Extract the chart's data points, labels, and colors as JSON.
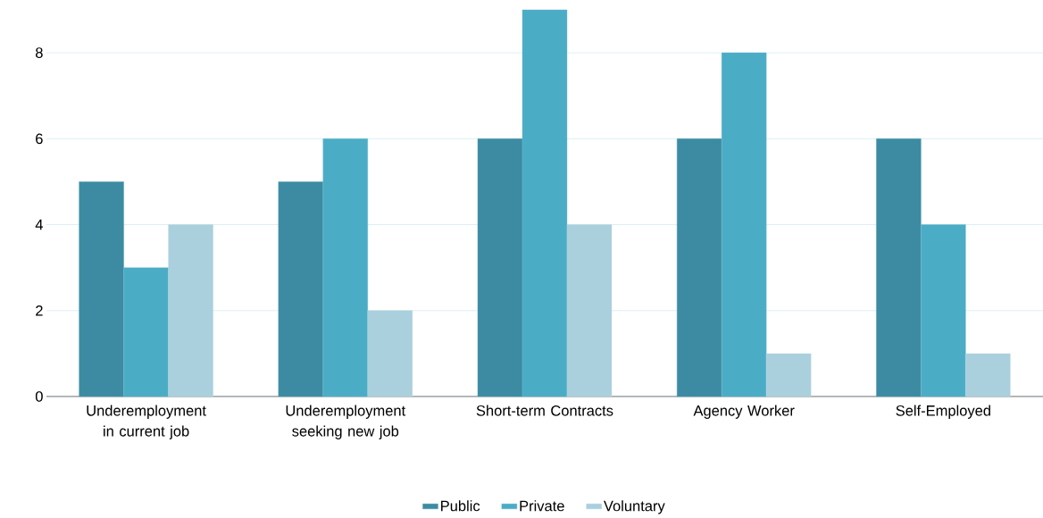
{
  "chart_data": {
    "type": "bar",
    "categories": [
      "Underemployment in current job",
      "Underemployment seeking new job",
      "Short-term Contracts",
      "Agency Worker",
      "Self-Employed"
    ],
    "series": [
      {
        "name": "Public",
        "color": "#3c8ba2",
        "values": [
          5,
          5,
          6,
          6,
          6
        ]
      },
      {
        "name": "Private",
        "color": "#4bacc6",
        "values": [
          3,
          6,
          9,
          8,
          4
        ]
      },
      {
        "name": "Voluntary",
        "color": "#aacfdd",
        "values": [
          4,
          2,
          4,
          1,
          1
        ]
      }
    ],
    "ylim": [
      0,
      9
    ],
    "yticks": [
      0,
      2,
      4,
      6,
      8
    ],
    "grid": "y",
    "legend": "bottom"
  }
}
